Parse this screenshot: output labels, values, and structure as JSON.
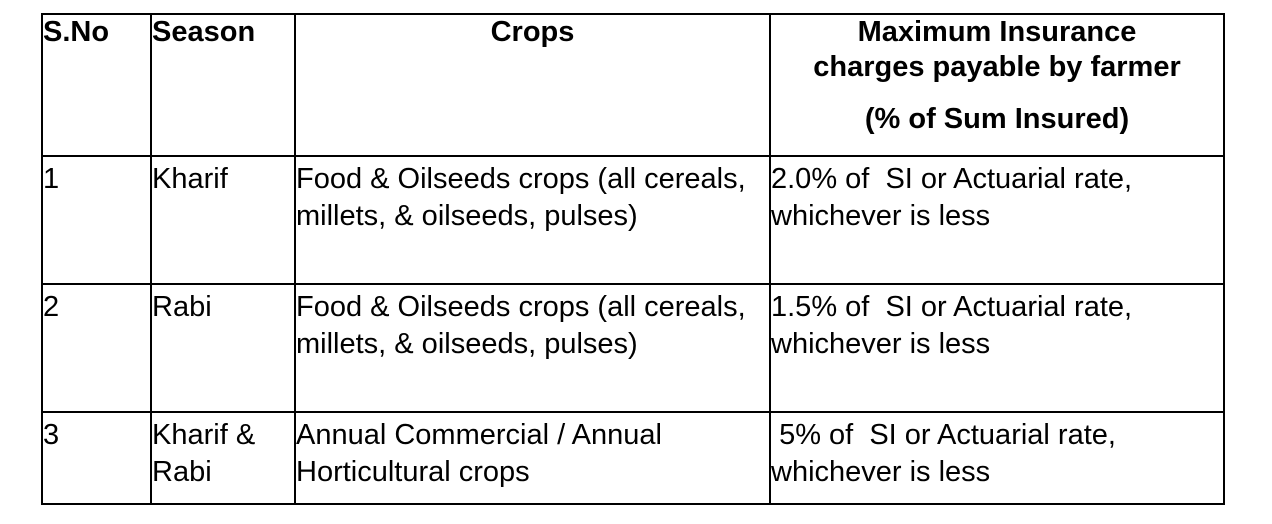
{
  "table": {
    "headers": {
      "sno": "S.No",
      "season": "Season",
      "crops": "Crops",
      "charges_line1": "Maximum Insurance",
      "charges_line2": "charges payable by farmer",
      "charges_sub": "(% of Sum Insured)"
    },
    "rows": [
      {
        "sno": "1",
        "season": "Kharif",
        "crops": "Food & Oilseeds  crops (all cereals, millets,  & oilseeds, pulses)",
        "charges": "2.0% of  SI or Actuarial rate, whichever is less"
      },
      {
        "sno": "2",
        "season": "Rabi",
        "crops": "Food & Oilseeds  crops (all cereals, millets,  & oilseeds, pulses)",
        "charges": "1.5% of  SI or Actuarial rate, whichever is less"
      },
      {
        "sno": "3",
        "season": "Kharif & Rabi",
        "crops": "Annual Commercial / Annual Horticultural crops",
        "charges": " 5% of  SI or Actuarial rate, whichever is less"
      }
    ]
  }
}
